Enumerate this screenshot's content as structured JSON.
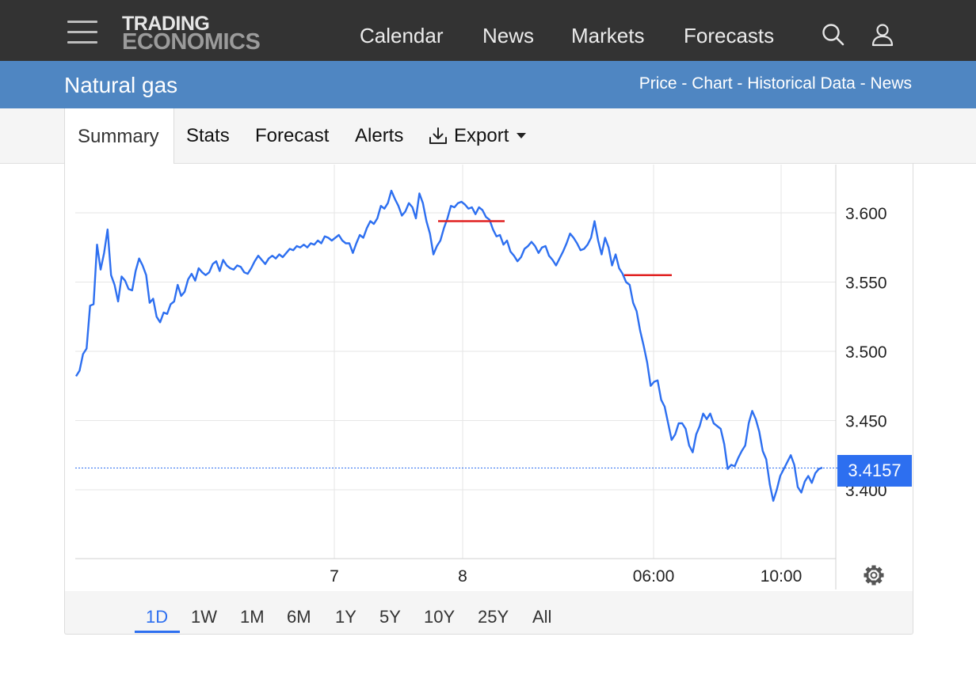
{
  "header": {
    "logo_line1": "TRADING",
    "logo_line2": "ECONOMICS",
    "nav": [
      "Calendar",
      "News",
      "Markets",
      "Forecasts"
    ],
    "icons": [
      "menu-icon",
      "search-icon",
      "user-icon"
    ]
  },
  "titlebar": {
    "title": "Natural gas",
    "links": [
      "Price",
      "Chart",
      "Historical Data",
      "News"
    ],
    "separator": " - "
  },
  "tabs": {
    "active": "Summary",
    "items": [
      "Stats",
      "Forecast",
      "Alerts"
    ],
    "export_label": "Export"
  },
  "chart_data": {
    "type": "line",
    "y_ticks": [
      "3.600",
      "3.550",
      "3.500",
      "3.450",
      "3.400"
    ],
    "x_ticks": [
      "7",
      "8",
      "06:00",
      "10:00"
    ],
    "ylim": [
      3.35,
      3.635
    ],
    "last_price": "3.4157",
    "last_value": 3.4157,
    "colors": {
      "line": "#2d6ff0",
      "marker": "#e02020",
      "grid": "#e6e6e6",
      "badge": "#2d6ff0"
    },
    "markers": [
      {
        "x": [
          0.595,
          0.722
        ],
        "y": 3.594
      },
      {
        "x": [
          0.808,
          0.893
        ],
        "y": 3.555
      }
    ],
    "series": [
      {
        "values": [
          3.482,
          3.486,
          3.498,
          3.502,
          3.533,
          3.534,
          3.577,
          3.559,
          3.571,
          3.588,
          3.555,
          3.548,
          3.536,
          3.554,
          3.551,
          3.545,
          3.544,
          3.558,
          3.567,
          3.562,
          3.555,
          3.535,
          3.538,
          3.525,
          3.521,
          3.528,
          3.527,
          3.534,
          3.536,
          3.548,
          3.54,
          3.543,
          3.552,
          3.556,
          3.551,
          3.56,
          3.557,
          3.555,
          3.557,
          3.563,
          3.565,
          3.558,
          3.566,
          3.562,
          3.56,
          3.559,
          3.562,
          3.561,
          3.557,
          3.556,
          3.56,
          3.565,
          3.569,
          3.566,
          3.563,
          3.567,
          3.569,
          3.567,
          3.57,
          3.568,
          3.571,
          3.574,
          3.573,
          3.576,
          3.575,
          3.577,
          3.575,
          3.578,
          3.577,
          3.58,
          3.578,
          3.583,
          3.582,
          3.58,
          3.582,
          3.584,
          3.58,
          3.578,
          3.578,
          3.571,
          3.578,
          3.584,
          3.582,
          3.589,
          3.594,
          3.592,
          3.596,
          3.605,
          3.603,
          3.607,
          3.616,
          3.61,
          3.605,
          3.598,
          3.601,
          3.607,
          3.604,
          3.596,
          3.614,
          3.607,
          3.594,
          3.585,
          3.57,
          3.576,
          3.58,
          3.589,
          3.596,
          3.605,
          3.604,
          3.607,
          3.608,
          3.606,
          3.603,
          3.604,
          3.599,
          3.604,
          3.602,
          3.597,
          3.595,
          3.588,
          3.583,
          3.584,
          3.577,
          3.58,
          3.572,
          3.569,
          3.565,
          3.568,
          3.574,
          3.576,
          3.579,
          3.576,
          3.571,
          3.575,
          3.576,
          3.569,
          3.566,
          3.562,
          3.567,
          3.572,
          3.578,
          3.585,
          3.582,
          3.578,
          3.573,
          3.574,
          3.577,
          3.582,
          3.594,
          3.58,
          3.57,
          3.582,
          3.575,
          3.562,
          3.57,
          3.56,
          3.556,
          3.55,
          3.548,
          3.535,
          3.529,
          3.515,
          3.504,
          3.492,
          3.475,
          3.478,
          3.479,
          3.465,
          3.46,
          3.448,
          3.436,
          3.44,
          3.448,
          3.448,
          3.444,
          3.432,
          3.427,
          3.44,
          3.446,
          3.455,
          3.451,
          3.455,
          3.448,
          3.446,
          3.444,
          3.433,
          3.415,
          3.418,
          3.417,
          3.423,
          3.428,
          3.432,
          3.448,
          3.457,
          3.451,
          3.442,
          3.428,
          3.422,
          3.404,
          3.392,
          3.4,
          3.41,
          3.415,
          3.42,
          3.425,
          3.418,
          3.402,
          3.398,
          3.406,
          3.41,
          3.405,
          3.412,
          3.415,
          3.416
        ]
      }
    ]
  },
  "ranges": {
    "active": "1D",
    "items": [
      "1D",
      "1W",
      "1M",
      "6M",
      "1Y",
      "5Y",
      "10Y",
      "25Y",
      "All"
    ]
  }
}
